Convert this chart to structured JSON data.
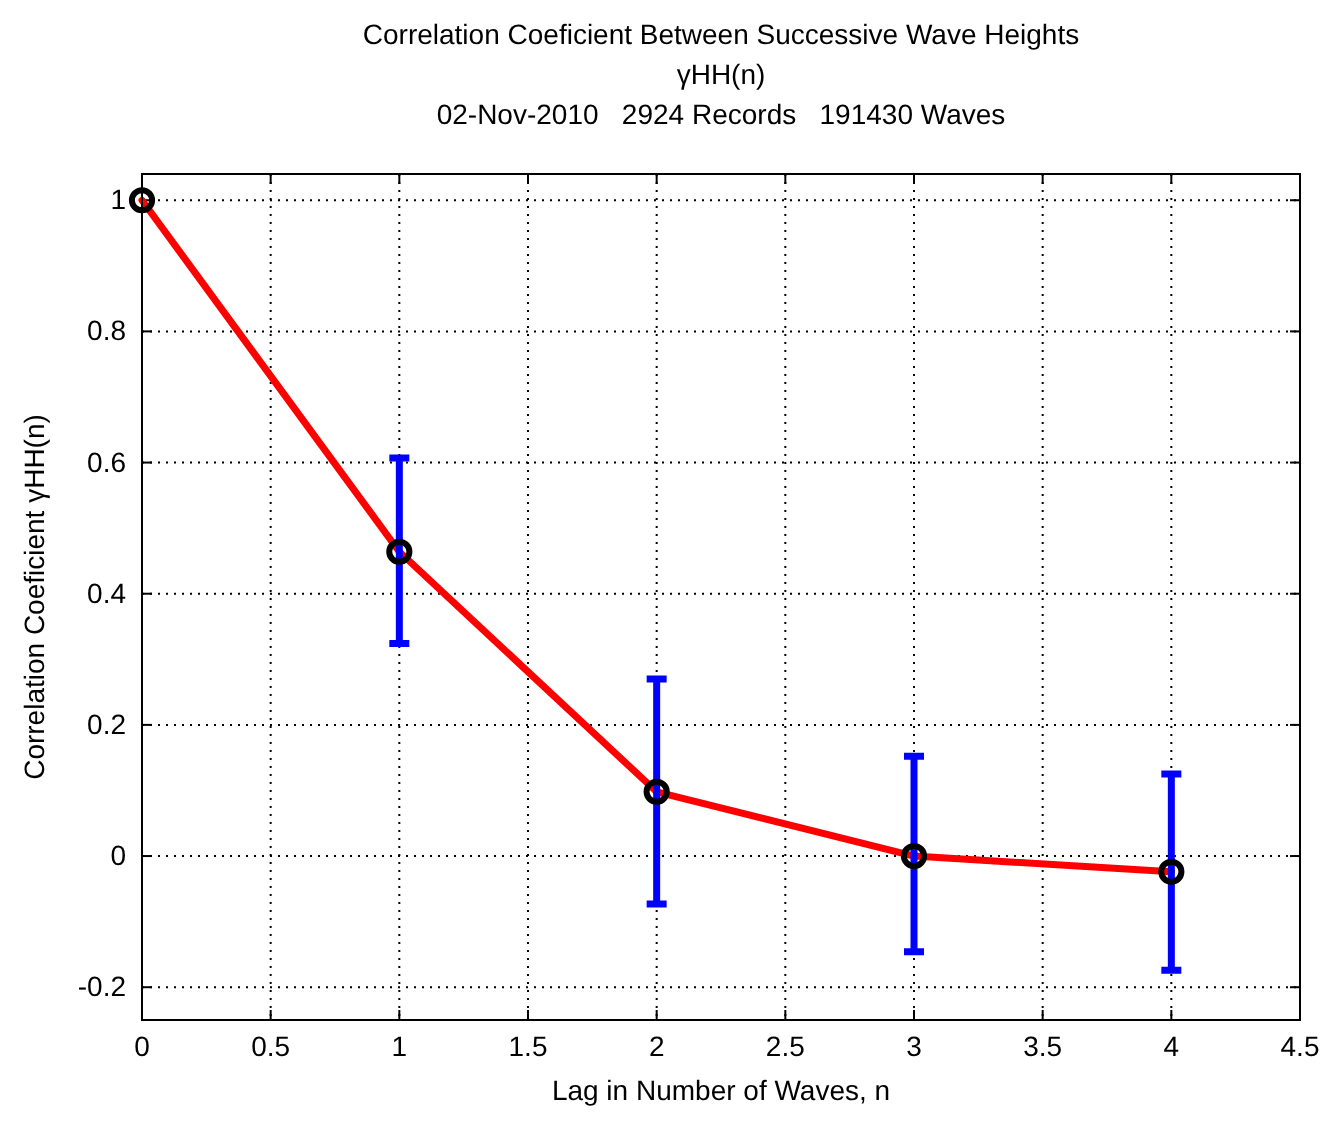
{
  "chart_data": {
    "type": "line",
    "title": "Correlation Coeficient Between Successive Wave Heights",
    "subtitle": "γHH(n)",
    "annotations": [
      "02-Nov-2010   2924 Records   191430 Waves"
    ],
    "xlabel": "Lag in Number of Waves, n",
    "ylabel": "Correlation Coeficient γHH(n)",
    "x": [
      0,
      1,
      2,
      3,
      4
    ],
    "series": [
      {
        "color": "#ff0000",
        "values": [
          1,
          0.464,
          0.098,
          0.0,
          -0.024
        ],
        "errors": [
          null,
          [
            0.324,
            0.607
          ],
          [
            -0.073,
            0.27
          ],
          [
            -0.146,
            0.152
          ],
          [
            -0.174,
            0.125
          ]
        ]
      }
    ],
    "xlim": [
      0,
      4.5
    ],
    "xticks": [
      0,
      0.5,
      1,
      1.5,
      2,
      2.5,
      3,
      3.5,
      4,
      4.5
    ],
    "ylim": [
      -0.25,
      1.04
    ],
    "yticks": [
      -0.2,
      0,
      0.2,
      0.4,
      0.6,
      0.8,
      1
    ],
    "grid": true,
    "marker": "circle",
    "line_style": "solid"
  }
}
